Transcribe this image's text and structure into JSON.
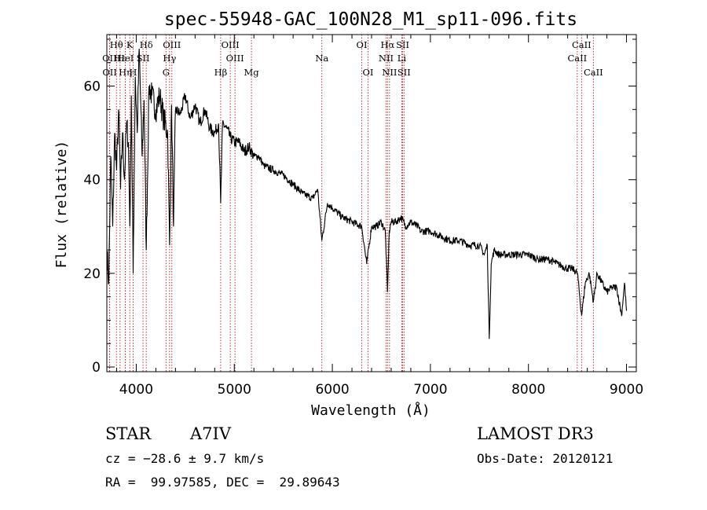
{
  "chart_data": {
    "type": "line",
    "title": "spec-55948-GAC_100N28_M1_sp11-096.fits",
    "xlabel": "Wavelength (Å)",
    "ylabel": "Flux (relative)",
    "xlim": [
      3700,
      9100
    ],
    "ylim": [
      -1,
      71
    ],
    "xticks": [
      4000,
      5000,
      6000,
      7000,
      8000,
      9000
    ],
    "xtick_labels": [
      "4000",
      "5000",
      "6000",
      "7000",
      "8000",
      "9000"
    ],
    "yticks": [
      0,
      20,
      40,
      60
    ],
    "ytick_labels": [
      "0",
      "20",
      "40",
      "60"
    ],
    "series": [
      {
        "name": "spectrum",
        "x": [
          3700,
          3720,
          3740,
          3760,
          3780,
          3800,
          3820,
          3840,
          3860,
          3880,
          3900,
          3920,
          3935,
          3950,
          3968,
          3990,
          4010,
          4030,
          4060,
          4080,
          4102,
          4130,
          4160,
          4200,
          4240,
          4280,
          4320,
          4340,
          4360,
          4380,
          4400,
          4450,
          4500,
          4550,
          4600,
          4650,
          4700,
          4750,
          4800,
          4840,
          4861,
          4880,
          4920,
          4960,
          5000,
          5050,
          5100,
          5150,
          5200,
          5250,
          5300,
          5400,
          5500,
          5600,
          5700,
          5800,
          5850,
          5893,
          5950,
          6000,
          6100,
          6200,
          6300,
          6350,
          6400,
          6450,
          6500,
          6540,
          6563,
          6580,
          6600,
          6650,
          6700,
          6750,
          6800,
          6870,
          6900,
          7000,
          7100,
          7200,
          7300,
          7400,
          7500,
          7550,
          7580,
          7600,
          7620,
          7650,
          7700,
          7800,
          7900,
          8000,
          8100,
          8200,
          8300,
          8400,
          8450,
          8500,
          8542,
          8580,
          8620,
          8662,
          8700,
          8750,
          8800,
          8850,
          8900,
          8950,
          8980,
          9000
        ],
        "y": [
          25,
          18,
          45,
          30,
          50,
          42,
          55,
          38,
          50,
          40,
          52,
          48,
          30,
          58,
          20,
          62,
          50,
          68,
          45,
          57,
          25,
          60,
          58,
          55,
          58,
          53,
          50,
          26,
          56,
          30,
          55,
          54,
          58,
          53,
          56,
          52,
          55,
          51,
          50,
          52,
          35,
          52,
          51,
          49,
          48,
          48,
          46,
          47,
          45,
          45,
          43,
          42,
          41,
          39,
          37,
          36,
          38,
          27,
          35,
          34,
          32,
          31,
          30,
          22,
          30,
          30,
          31,
          29,
          16,
          29,
          31,
          31,
          32,
          30,
          31,
          30,
          29,
          29,
          28,
          27,
          27,
          26,
          26,
          24,
          26,
          6,
          22,
          25,
          24,
          24,
          24,
          24,
          23,
          23,
          22,
          21,
          21,
          20,
          11,
          18,
          20,
          14,
          20,
          18,
          16,
          17,
          17,
          11,
          18,
          12
        ]
      }
    ],
    "lines": [
      {
        "name": "Hθ",
        "wave": 3798,
        "row": 1
      },
      {
        "name": "OII",
        "wave": 3727,
        "row": 2
      },
      {
        "name": "OII",
        "wave": 3729,
        "row": 3
      },
      {
        "name": "Hε",
        "wave": 3835,
        "row": 2
      },
      {
        "name": "Hη",
        "wave": 3889,
        "row": 3
      },
      {
        "name": "K",
        "wave": 3934,
        "row": 1
      },
      {
        "name": "HeI",
        "wave": 3889,
        "row": 2
      },
      {
        "name": "H",
        "wave": 3968,
        "row": 3
      },
      {
        "name": "Hδ",
        "wave": 4102,
        "row": 1
      },
      {
        "name": "SII",
        "wave": 4069,
        "row": 2
      },
      {
        "name": "OIII",
        "wave": 4363,
        "row": 1
      },
      {
        "name": "Hγ",
        "wave": 4340,
        "row": 2
      },
      {
        "name": "G",
        "wave": 4304,
        "row": 3
      },
      {
        "name": "Hβ",
        "wave": 4861,
        "row": 3
      },
      {
        "name": "OIII",
        "wave": 4959,
        "row": 1
      },
      {
        "name": "OIII",
        "wave": 5007,
        "row": 2
      },
      {
        "name": "Mg",
        "wave": 5175,
        "row": 3
      },
      {
        "name": "Na",
        "wave": 5893,
        "row": 2
      },
      {
        "name": "OI",
        "wave": 6300,
        "row": 1
      },
      {
        "name": "OI",
        "wave": 6364,
        "row": 3
      },
      {
        "name": "Hα",
        "wave": 6563,
        "row": 1
      },
      {
        "name": "NII",
        "wave": 6548,
        "row": 2
      },
      {
        "name": "NII",
        "wave": 6583,
        "row": 3
      },
      {
        "name": "SII",
        "wave": 6717,
        "row": 1
      },
      {
        "name": "Li",
        "wave": 6708,
        "row": 2
      },
      {
        "name": "SII",
        "wave": 6731,
        "row": 3
      },
      {
        "name": "CaII",
        "wave": 8542,
        "row": 1
      },
      {
        "name": "CaII",
        "wave": 8498,
        "row": 2
      },
      {
        "name": "CaII",
        "wave": 8662,
        "row": 3
      }
    ]
  },
  "info": {
    "object_class": "STAR",
    "subclass": "A7IV",
    "survey": "LAMOST DR3",
    "cz": "cz = −28.6 ± 9.7 km/s",
    "obs_date": "Obs-Date: 20120121",
    "coords": "RA =  99.97585, DEC =  29.89643"
  }
}
